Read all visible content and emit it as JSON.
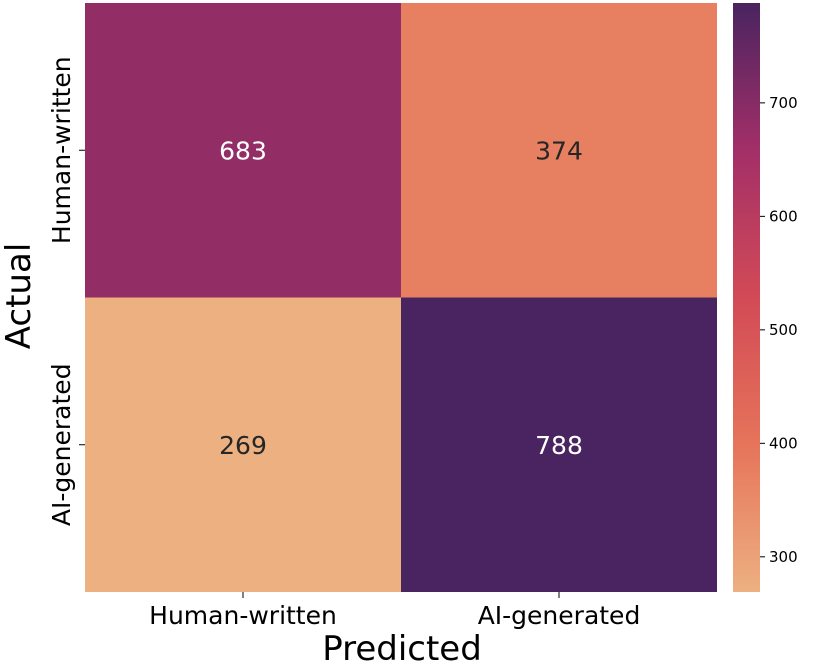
{
  "chart_data": {
    "type": "heatmap",
    "title": "",
    "xlabel": "Predicted",
    "ylabel": "Actual",
    "x_categories": [
      "Human-written",
      "AI-generated"
    ],
    "y_categories": [
      "Human-written",
      "AI-generated"
    ],
    "values": [
      [
        683,
        374
      ],
      [
        269,
        788
      ]
    ],
    "colormap": "flare",
    "colorbar": {
      "vmin": 269,
      "vmax": 788,
      "ticks": [
        300,
        400,
        500,
        600,
        700
      ],
      "tick_labels": [
        "300",
        "400",
        "500",
        "600",
        "700"
      ]
    },
    "annotation_colors": {
      "light": "#ffffff",
      "dark": "#262626"
    }
  }
}
